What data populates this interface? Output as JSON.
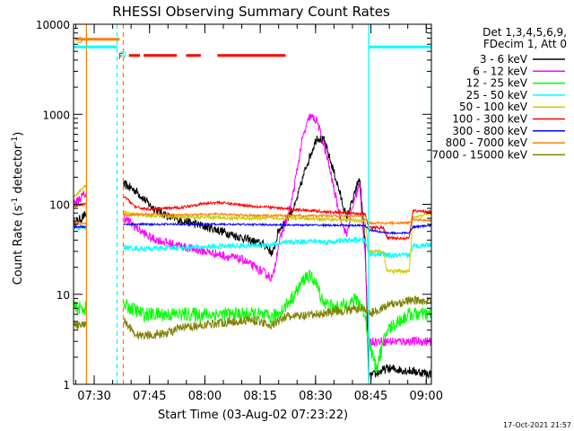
{
  "chart_data": {
    "type": "line",
    "title": "RHESSI Observing Summary Count Rates",
    "xlabel": "Start Time (03-Aug-02 07:23:22)",
    "ylabel": "Count Rate (s⁻¹ detector⁻¹)",
    "ylabel_parts": {
      "main": "Count Rate (s",
      "sup": "-1",
      "mid": " detector",
      "sup2": "-1",
      "end": ")"
    },
    "yscale": "log",
    "ylim": [
      1,
      10000
    ],
    "xlim_min": [
      1.0,
      98.0
    ],
    "yticks": [
      {
        "v": 1,
        "label": "1"
      },
      {
        "v": 10,
        "label": "10"
      },
      {
        "v": 100,
        "label": "100"
      },
      {
        "v": 1000,
        "label": "1000"
      },
      {
        "v": 10000,
        "label": "10000"
      }
    ],
    "xticks": [
      {
        "t": 6.6,
        "label": "07:30"
      },
      {
        "t": 21.6,
        "label": "07:45"
      },
      {
        "t": 36.6,
        "label": "08:00"
      },
      {
        "t": 51.6,
        "label": "08:15"
      },
      {
        "t": 66.6,
        "label": "08:30"
      },
      {
        "t": 81.6,
        "label": "08:45"
      },
      {
        "t": 96.6,
        "label": "09:00"
      }
    ],
    "legend_header": [
      "Det 1,3,4,5,6,9,",
      "FDecim 1, Att 0"
    ],
    "legend_position": "top-right",
    "timestamp": "17-Oct-2021 21:57",
    "markers": {
      "s": {
        "label": "S",
        "t0": 1.5,
        "t1": 13.5,
        "y": 6800,
        "color": "#ff7f00"
      },
      "n": {
        "label": "N",
        "t0": 0.0,
        "t1": 12.8,
        "t2": 81.0,
        "t3": 98.0,
        "y": 5600,
        "color": "#00ffff"
      },
      "f": {
        "label": "F",
        "y": 4500,
        "color": "#ff0000",
        "segments": [
          [
            16.0,
            19.0
          ],
          [
            20.0,
            29.0
          ],
          [
            31.5,
            35.5
          ],
          [
            40.0,
            58.5
          ]
        ]
      }
    },
    "vlines": [
      {
        "t": 4.5,
        "color": "#ff7f00",
        "dashed": false
      },
      {
        "t": 12.8,
        "color": "#00ffff",
        "dashed": true
      },
      {
        "t": 14.5,
        "color": "#ff7f00",
        "dashed": true
      },
      {
        "t": 81.0,
        "color": "#00ffff",
        "dashed": false
      },
      {
        "t": 98.0,
        "color": "#00ffff",
        "dashed": true
      }
    ],
    "series": [
      {
        "name": "3 - 6 keV",
        "color": "#000000",
        "noise": 0.05,
        "gaps": [
          [
            4.5,
            14.5
          ]
        ],
        "points": [
          [
            1.0,
            60
          ],
          [
            4.0,
            75
          ],
          [
            15.0,
            165
          ],
          [
            18.0,
            140
          ],
          [
            22.0,
            95
          ],
          [
            27.0,
            72
          ],
          [
            33.0,
            62
          ],
          [
            40.0,
            52
          ],
          [
            47.0,
            42
          ],
          [
            53.0,
            35
          ],
          [
            55.0,
            28
          ],
          [
            56.5,
            50
          ],
          [
            61.0,
            95
          ],
          [
            64.0,
            260
          ],
          [
            67.0,
            560
          ],
          [
            69.0,
            500
          ],
          [
            72.0,
            200
          ],
          [
            75.0,
            70
          ],
          [
            77.0,
            120
          ],
          [
            78.5,
            200
          ],
          [
            80.0,
            40
          ],
          [
            81.0,
            1.2
          ],
          [
            86.0,
            1.5
          ],
          [
            93.0,
            1.4
          ],
          [
            98.0,
            1.3
          ]
        ]
      },
      {
        "name": "6 - 12 keV",
        "color": "#ff00ff",
        "noise": 0.05,
        "gaps": [
          [
            4.5,
            14.5
          ]
        ],
        "points": [
          [
            1.0,
            100
          ],
          [
            4.0,
            130
          ],
          [
            15.0,
            70
          ],
          [
            18.0,
            55
          ],
          [
            22.0,
            42
          ],
          [
            27.0,
            37
          ],
          [
            33.0,
            32
          ],
          [
            40.0,
            28
          ],
          [
            47.0,
            24
          ],
          [
            53.0,
            17
          ],
          [
            55.0,
            15
          ],
          [
            56.5,
            35
          ],
          [
            60.0,
            100
          ],
          [
            63.0,
            520
          ],
          [
            65.0,
            950
          ],
          [
            67.0,
            850
          ],
          [
            70.0,
            300
          ],
          [
            73.0,
            80
          ],
          [
            75.0,
            45
          ],
          [
            77.0,
            110
          ],
          [
            78.5,
            165
          ],
          [
            80.0,
            30
          ],
          [
            81.0,
            3.0
          ],
          [
            98.0,
            3.0
          ]
        ]
      },
      {
        "name": "12 - 25 keV",
        "color": "#00ff00",
        "noise": 0.08,
        "gaps": [
          [
            4.5,
            14.5
          ]
        ],
        "points": [
          [
            1.0,
            7
          ],
          [
            4.0,
            7
          ],
          [
            15.0,
            7.5
          ],
          [
            20.0,
            6
          ],
          [
            30.0,
            6
          ],
          [
            40.0,
            6
          ],
          [
            50.0,
            6
          ],
          [
            55.0,
            5.5
          ],
          [
            58.0,
            7
          ],
          [
            61.0,
            10
          ],
          [
            64.0,
            16
          ],
          [
            66.0,
            15
          ],
          [
            69.0,
            8
          ],
          [
            72.0,
            7
          ],
          [
            76.0,
            8
          ],
          [
            78.0,
            9
          ],
          [
            80.0,
            6
          ],
          [
            81.0,
            3
          ],
          [
            83.0,
            1.5
          ],
          [
            86.0,
            4
          ],
          [
            89.0,
            5
          ],
          [
            92.0,
            6
          ],
          [
            98.0,
            6
          ]
        ]
      },
      {
        "name": "25 - 50 keV",
        "color": "#00ffff",
        "noise": 0.03,
        "gaps": [
          [
            4.5,
            14.5
          ]
        ],
        "points": [
          [
            1.0,
            55
          ],
          [
            4.0,
            55
          ],
          [
            15.0,
            33
          ],
          [
            20.0,
            32
          ],
          [
            30.0,
            33
          ],
          [
            40.0,
            34
          ],
          [
            50.0,
            35
          ],
          [
            56.0,
            36
          ],
          [
            60.0,
            38
          ],
          [
            66.0,
            39
          ],
          [
            70.0,
            38
          ],
          [
            76.0,
            40
          ],
          [
            80.0,
            40
          ],
          [
            81.0,
            28
          ],
          [
            85.0,
            28
          ],
          [
            86.0,
            27
          ],
          [
            92.0,
            27
          ],
          [
            93.0,
            34
          ],
          [
            98.0,
            36
          ]
        ]
      },
      {
        "name": "50 - 100 keV",
        "color": "#cccc00",
        "noise": 0.02,
        "gaps": [
          [
            4.5,
            14.5
          ]
        ],
        "points": [
          [
            1.0,
            120
          ],
          [
            4.0,
            160
          ],
          [
            15.0,
            80
          ],
          [
            20.0,
            75
          ],
          [
            30.0,
            72
          ],
          [
            40.0,
            71
          ],
          [
            50.0,
            70
          ],
          [
            60.0,
            70
          ],
          [
            70.0,
            68
          ],
          [
            80.0,
            66
          ],
          [
            81.0,
            30
          ],
          [
            85.0,
            30
          ],
          [
            86.0,
            18
          ],
          [
            92.0,
            18
          ],
          [
            93.0,
            70
          ],
          [
            98.0,
            80
          ]
        ]
      },
      {
        "name": "100 - 300 keV",
        "color": "#ff0000",
        "noise": 0.015,
        "gaps": [
          [
            4.5,
            14.5
          ]
        ],
        "points": [
          [
            1.0,
            95
          ],
          [
            4.0,
            100
          ],
          [
            15.0,
            120
          ],
          [
            18.0,
            92
          ],
          [
            22.0,
            88
          ],
          [
            30.0,
            92
          ],
          [
            35.0,
            100
          ],
          [
            40.0,
            105
          ],
          [
            45.0,
            100
          ],
          [
            50.0,
            95
          ],
          [
            55.0,
            92
          ],
          [
            60.0,
            88
          ],
          [
            66.0,
            85
          ],
          [
            70.0,
            82
          ],
          [
            76.0,
            80
          ],
          [
            80.0,
            78
          ],
          [
            81.0,
            55
          ],
          [
            85.0,
            55
          ],
          [
            86.0,
            42
          ],
          [
            92.0,
            42
          ],
          [
            93.0,
            85
          ],
          [
            98.0,
            82
          ]
        ]
      },
      {
        "name": "300 - 800 keV",
        "color": "#0000ff",
        "noise": 0.01,
        "gaps": [
          [
            4.5,
            14.5
          ]
        ],
        "points": [
          [
            1.0,
            56
          ],
          [
            4.0,
            56
          ],
          [
            15.0,
            60
          ],
          [
            40.0,
            60
          ],
          [
            80.0,
            58
          ],
          [
            81.0,
            52
          ],
          [
            86.0,
            48
          ],
          [
            92.0,
            48
          ],
          [
            93.0,
            56
          ],
          [
            98.0,
            58
          ]
        ]
      },
      {
        "name": "800 - 7000 keV",
        "color": "#ff7f00",
        "noise": 0.012,
        "gaps": [
          [
            4.5,
            14.5
          ]
        ],
        "points": [
          [
            1.0,
            60
          ],
          [
            4.0,
            62
          ],
          [
            15.0,
            75
          ],
          [
            20.0,
            78
          ],
          [
            30.0,
            76
          ],
          [
            40.0,
            78
          ],
          [
            50.0,
            75
          ],
          [
            60.0,
            75
          ],
          [
            70.0,
            74
          ],
          [
            80.0,
            74
          ],
          [
            81.0,
            62
          ],
          [
            86.0,
            62
          ],
          [
            92.0,
            62
          ],
          [
            93.0,
            68
          ],
          [
            98.0,
            66
          ]
        ]
      },
      {
        "name": "7000 - 15000 keV",
        "color": "#808000",
        "noise": 0.05,
        "gaps": [
          [
            4.5,
            14.5
          ]
        ],
        "points": [
          [
            1.0,
            4.5
          ],
          [
            4.0,
            4.5
          ],
          [
            15.0,
            5
          ],
          [
            18.0,
            3.5
          ],
          [
            25.0,
            3.6
          ],
          [
            30.0,
            4.2
          ],
          [
            40.0,
            4.8
          ],
          [
            50.0,
            5.2
          ],
          [
            55.0,
            4.5
          ],
          [
            58.0,
            5.6
          ],
          [
            65.0,
            5.8
          ],
          [
            72.0,
            6.5
          ],
          [
            80.0,
            7
          ],
          [
            81.0,
            6
          ],
          [
            86.0,
            7.5
          ],
          [
            92.0,
            8.5
          ],
          [
            98.0,
            8.5
          ]
        ]
      }
    ]
  }
}
